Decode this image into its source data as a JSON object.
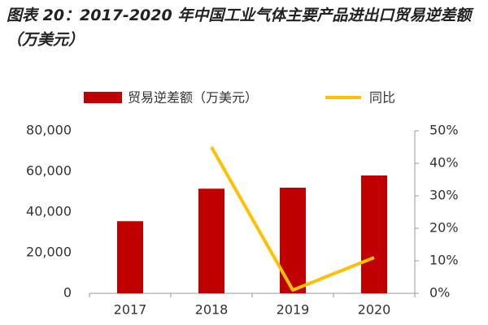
{
  "chart_data": {
    "type": "combo",
    "title": "图表 20：2017-2020 年中国工业气体主要产品进出口贸易逆差额（万美元）",
    "categories": [
      "2017",
      "2018",
      "2019",
      "2020"
    ],
    "series": [
      {
        "name": "贸易逆差额（万美元）",
        "type": "bar",
        "color": "#c00000",
        "values": [
          35500,
          51500,
          52000,
          58000
        ]
      },
      {
        "name": "同比",
        "type": "line",
        "axis": "y2",
        "color": "#ffc000",
        "values": [
          null,
          45,
          1,
          11
        ]
      }
    ],
    "ylim": [
      0,
      80000
    ],
    "yticks": [
      0,
      {
        "value": 20000,
        "label": "20,000"
      },
      {
        "value": 40000,
        "label": "40,000"
      },
      {
        "value": 60000,
        "label": "60,000"
      },
      {
        "value": 80000,
        "label": "80,000"
      }
    ],
    "y2lim": [
      0,
      50
    ],
    "y2ticks": [
      {
        "value": 0,
        "label": "0%"
      },
      {
        "value": 10,
        "label": "10%"
      },
      {
        "value": 20,
        "label": "20%"
      },
      {
        "value": 30,
        "label": "30%"
      },
      {
        "value": 40,
        "label": "40%"
      },
      {
        "value": 50,
        "label": "50%"
      }
    ],
    "legend": "top"
  }
}
